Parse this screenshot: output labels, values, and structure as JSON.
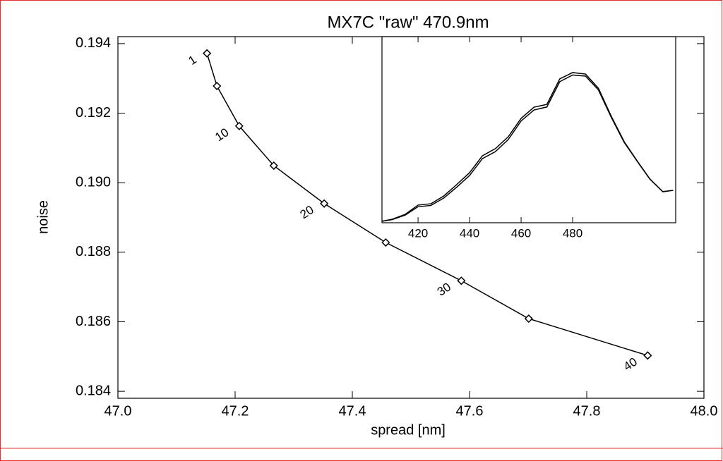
{
  "chart_data": [
    {
      "type": "line",
      "title": "MX7C \"raw\" 470.9nm",
      "x_label": "spread [nm]",
      "y_label": "noise",
      "x": [
        47.152,
        47.169,
        47.207,
        47.266,
        47.352,
        47.457,
        47.586,
        47.701,
        47.904
      ],
      "values": [
        0.19372,
        0.19278,
        0.19163,
        0.19049,
        0.1894,
        0.18828,
        0.18718,
        0.18609,
        0.18503
      ],
      "point_labels": [
        "1",
        null,
        "10",
        null,
        "20",
        null,
        "30",
        null,
        "40"
      ],
      "marker": "diamond",
      "color": "#000000",
      "xlim": [
        47.0,
        48.0
      ],
      "xticks": [
        {
          "value": 47.0,
          "label": "47.0"
        },
        47.2,
        47.4,
        47.6,
        47.8,
        {
          "value": 48.0,
          "label": "48.0"
        }
      ],
      "ylim": [
        0.1838,
        0.1942
      ],
      "yticks": [
        0.184,
        0.186,
        0.188,
        {
          "value": 0.19,
          "label": "0.190"
        },
        0.192,
        0.194
      ]
    },
    {
      "type": "line",
      "x": [
        406,
        410,
        415,
        420,
        425,
        430,
        435,
        440,
        445,
        450,
        455,
        460,
        465,
        470,
        475,
        480,
        485,
        490,
        495,
        500,
        505,
        510,
        515,
        519
      ],
      "series": [
        {
          "color": "#000000",
          "values": [
            0.008,
            0.019,
            0.045,
            0.095,
            0.102,
            0.144,
            0.205,
            0.269,
            0.36,
            0.398,
            0.462,
            0.561,
            0.621,
            0.636,
            0.773,
            0.807,
            0.799,
            0.723,
            0.572,
            0.436,
            0.333,
            0.235,
            0.167,
            0.174
          ]
        },
        {
          "color": "#000000",
          "values": [
            0.008,
            0.017,
            0.041,
            0.086,
            0.093,
            0.133,
            0.191,
            0.254,
            0.345,
            0.382,
            0.447,
            0.547,
            0.606,
            0.622,
            0.758,
            0.794,
            0.788,
            0.714,
            0.566,
            0.432,
            0.331,
            0.234,
            0.167,
            0.174
          ]
        }
      ],
      "xlim": [
        406,
        520
      ],
      "xticks": [
        420,
        440,
        460,
        480
      ],
      "ylim": [
        0,
        1
      ]
    }
  ]
}
